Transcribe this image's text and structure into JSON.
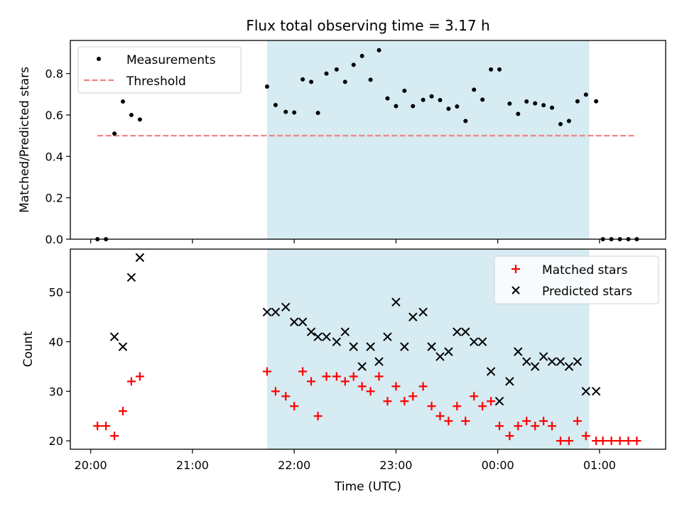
{
  "chart_data": {
    "title": "Flux total observing time = 3.17 h",
    "xlabel": "Time (UTC)",
    "x_ticks": [
      {
        "t": 0,
        "label": "20:00"
      },
      {
        "t": 60,
        "label": "21:00"
      },
      {
        "t": 120,
        "label": "22:00"
      },
      {
        "t": 180,
        "label": "23:00"
      },
      {
        "t": 240,
        "label": "00:00"
      },
      {
        "t": 300,
        "label": "01:00"
      }
    ],
    "xlim": [
      -12,
      339
    ],
    "shaded_span": {
      "start": 104,
      "end": 294,
      "color": "#add8e6"
    },
    "panels": [
      {
        "type": "scatter",
        "ylabel": "Matched/Predicted stars",
        "ylim": [
          0,
          0.96
        ],
        "y_ticks": [
          0.0,
          0.2,
          0.4,
          0.6,
          0.8
        ],
        "legend": "top-left",
        "series": [
          {
            "name": "Measurements",
            "color": "#000000",
            "marker": "dot",
            "x": [
              4,
              9,
              14,
              19,
              24,
              29,
              104,
              109,
              115,
              120,
              125,
              130,
              134,
              139,
              145,
              150,
              155,
              160,
              165,
              170,
              175,
              180,
              185,
              190,
              196,
              201,
              206,
              211,
              216,
              221,
              226,
              231,
              236,
              241,
              247,
              252,
              257,
              262,
              267,
              272,
              277,
              282,
              287,
              292,
              298,
              302,
              307,
              312,
              317,
              322
            ],
            "y": [
              0.0,
              0.0,
              0.51,
              0.665,
              0.6,
              0.578,
              0.737,
              0.648,
              0.615,
              0.612,
              0.772,
              0.76,
              0.61,
              0.8,
              0.82,
              0.76,
              0.842,
              0.885,
              0.77,
              0.913,
              0.68,
              0.643,
              0.717,
              0.643,
              0.673,
              0.69,
              0.672,
              0.63,
              0.641,
              0.571,
              0.722,
              0.674,
              0.82,
              0.82,
              0.655,
              0.605,
              0.665,
              0.656,
              0.647,
              0.635,
              0.556,
              0.571,
              0.666,
              0.698,
              0.666,
              0.0,
              0.0,
              0.0,
              0.0,
              0.0
            ]
          },
          {
            "name": "Threshold",
            "color": "#f08080",
            "style": "dashed",
            "x": [
              4,
              322
            ],
            "y": [
              0.5,
              0.5
            ]
          }
        ]
      },
      {
        "type": "scatter",
        "ylabel": "Count",
        "ylim": [
          18.3,
          58.7
        ],
        "y_ticks": [
          20,
          30,
          40,
          50
        ],
        "legend": "top-right",
        "series": [
          {
            "name": "Matched stars",
            "color": "#ff0000",
            "marker": "plus",
            "x": [
              4,
              9,
              14,
              19,
              24,
              29,
              104,
              109,
              115,
              120,
              125,
              130,
              134,
              139,
              145,
              150,
              155,
              160,
              165,
              170,
              175,
              180,
              185,
              190,
              196,
              201,
              206,
              211,
              216,
              221,
              226,
              231,
              236,
              241,
              247,
              252,
              257,
              262,
              267,
              272,
              277,
              282,
              287,
              292,
              298,
              302,
              307,
              312,
              317,
              322
            ],
            "y": [
              23,
              23,
              21,
              26,
              32,
              33,
              34,
              30,
              29,
              27,
              34,
              32,
              25,
              33,
              33,
              32,
              33,
              31,
              30,
              33,
              28,
              31,
              28,
              29,
              31,
              27,
              25,
              24,
              27,
              24,
              29,
              27,
              28,
              23,
              21,
              23,
              24,
              23,
              24,
              23,
              20,
              20,
              24,
              21,
              20,
              20,
              20,
              20,
              20,
              20
            ]
          },
          {
            "name": "Predicted stars",
            "color": "#000000",
            "marker": "cross",
            "x": [
              14,
              19,
              24,
              29,
              104,
              109,
              115,
              120,
              125,
              130,
              134,
              139,
              145,
              150,
              155,
              160,
              165,
              170,
              175,
              180,
              185,
              190,
              196,
              201,
              206,
              211,
              216,
              221,
              226,
              231,
              236,
              241,
              247,
              252,
              257,
              262,
              267,
              272,
              277,
              282,
              287,
              292,
              298
            ],
            "y": [
              41,
              39,
              53,
              57,
              46,
              46,
              47,
              44,
              44,
              42,
              41,
              41,
              40,
              42,
              39,
              35,
              39,
              36,
              41,
              48,
              39,
              45,
              46,
              39,
              37,
              38,
              42,
              42,
              40,
              40,
              34,
              28,
              32,
              38,
              36,
              35,
              37,
              36,
              36,
              35,
              36,
              30,
              30
            ]
          }
        ]
      }
    ]
  }
}
